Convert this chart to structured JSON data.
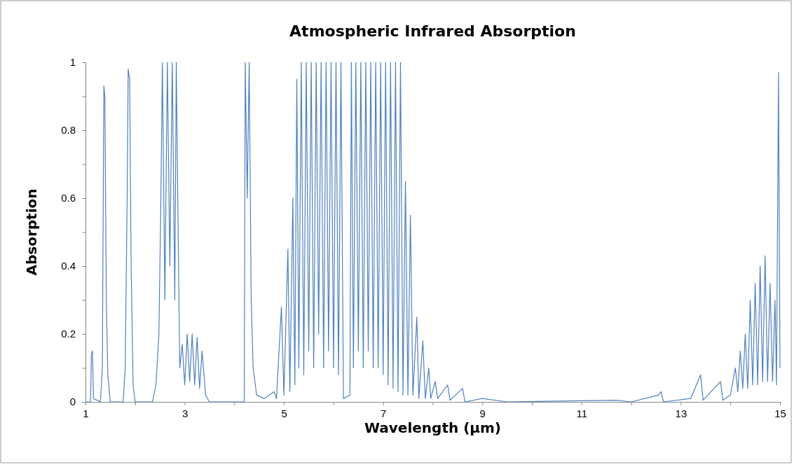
{
  "chart_data": {
    "type": "line",
    "title": "Atmospheric Infrared Absorption",
    "xlabel": "Wavelength (µm)",
    "ylabel": "Absorption",
    "xlim": [
      1,
      15
    ],
    "xticks": [
      1,
      {
        "value": 2,
        "label": null
      },
      3,
      {
        "value": 4,
        "label": null
      },
      5,
      {
        "value": 6,
        "label": null
      },
      7,
      {
        "value": 8,
        "label": null
      },
      9,
      {
        "value": 10,
        "label": null
      },
      11,
      {
        "value": 12,
        "label": null
      },
      13,
      {
        "value": 14,
        "label": null
      },
      15
    ],
    "ylim": [
      0,
      1
    ],
    "yticks": [
      0,
      {
        "value": 0.1,
        "label": null
      },
      0.2,
      {
        "value": 0.3,
        "label": null
      },
      0.4,
      {
        "value": 0.5,
        "label": null
      },
      0.6,
      {
        "value": 0.7,
        "label": null
      },
      0.8,
      {
        "value": 0.9,
        "label": null
      },
      1
    ],
    "grid": false,
    "marker": "none",
    "line_style": "solid",
    "series": [
      {
        "color": "#4f81bd",
        "x": [
          1.0,
          1.1,
          1.12,
          1.14,
          1.16,
          1.3,
          1.34,
          1.37,
          1.39,
          1.42,
          1.45,
          1.5,
          1.76,
          1.8,
          1.84,
          1.86,
          1.89,
          1.92,
          1.96,
          2.0,
          2.35,
          2.42,
          2.48,
          2.52,
          2.55,
          2.6,
          2.65,
          2.7,
          2.75,
          2.8,
          2.83,
          2.86,
          2.9,
          2.95,
          3.0,
          3.05,
          3.1,
          3.15,
          3.2,
          3.25,
          3.3,
          3.35,
          3.42,
          3.5,
          4.2,
          4.22,
          4.26,
          4.3,
          4.34,
          4.38,
          4.45,
          4.6,
          4.8,
          4.85,
          4.95,
          5.0,
          5.08,
          5.12,
          5.18,
          5.22,
          5.26,
          5.3,
          5.35,
          5.4,
          5.45,
          5.5,
          5.55,
          5.6,
          5.65,
          5.7,
          5.75,
          5.8,
          5.85,
          5.9,
          5.95,
          6.0,
          6.05,
          6.1,
          6.15,
          6.2,
          6.33,
          6.36,
          6.4,
          6.45,
          6.5,
          6.55,
          6.6,
          6.65,
          6.7,
          6.75,
          6.8,
          6.85,
          6.9,
          6.95,
          7.0,
          7.05,
          7.1,
          7.15,
          7.2,
          7.25,
          7.3,
          7.35,
          7.4,
          7.45,
          7.5,
          7.55,
          7.6,
          7.68,
          7.72,
          7.8,
          7.85,
          7.92,
          7.96,
          8.05,
          8.1,
          8.3,
          8.35,
          8.6,
          8.65,
          9.0,
          9.5,
          11.7,
          12.0,
          12.55,
          12.6,
          12.65,
          13.2,
          13.4,
          13.45,
          13.8,
          13.85,
          14.0,
          14.1,
          14.15,
          14.2,
          14.25,
          14.3,
          14.35,
          14.4,
          14.45,
          14.5,
          14.55,
          14.6,
          14.65,
          14.7,
          14.75,
          14.8,
          14.85,
          14.9,
          14.93,
          14.97,
          15.0
        ],
        "values": [
          0,
          0,
          0.14,
          0.15,
          0.01,
          0,
          0.1,
          0.93,
          0.9,
          0.3,
          0.08,
          0,
          0,
          0.1,
          0.6,
          0.98,
          0.95,
          0.4,
          0.05,
          0,
          0,
          0.05,
          0.2,
          0.6,
          1,
          0.3,
          1,
          0.4,
          1,
          0.3,
          1,
          0.6,
          0.1,
          0.17,
          0.05,
          0.2,
          0.06,
          0.2,
          0.05,
          0.19,
          0.04,
          0.15,
          0.02,
          0,
          0,
          1,
          0.6,
          1,
          0.3,
          0.1,
          0.02,
          0.01,
          0.03,
          0.01,
          0.28,
          0.02,
          0.45,
          0.03,
          0.6,
          0.05,
          0.95,
          0.1,
          1,
          0.08,
          1,
          0.15,
          1,
          0.1,
          1,
          0.2,
          1,
          0.1,
          1,
          0.15,
          1,
          0.1,
          1,
          0.08,
          1,
          0.01,
          0.02,
          1,
          0.1,
          1,
          0.15,
          1,
          0.1,
          1,
          0.15,
          1,
          0.1,
          1,
          0.1,
          1,
          0.08,
          1,
          0.05,
          1,
          0.04,
          1,
          0.03,
          1,
          0.02,
          0.65,
          0.02,
          0.55,
          0.02,
          0.25,
          0.01,
          0.18,
          0.01,
          0.1,
          0.01,
          0.06,
          0.01,
          0.05,
          0.005,
          0.04,
          0,
          0.01,
          0,
          0.005,
          0,
          0.02,
          0.03,
          0,
          0.01,
          0.08,
          0.005,
          0.06,
          0.005,
          0.02,
          0.1,
          0.03,
          0.15,
          0.04,
          0.2,
          0.04,
          0.3,
          0.05,
          0.35,
          0.05,
          0.4,
          0.06,
          0.43,
          0.06,
          0.35,
          0.06,
          0.3,
          0.05,
          0.97,
          0.1
        ]
      }
    ]
  }
}
